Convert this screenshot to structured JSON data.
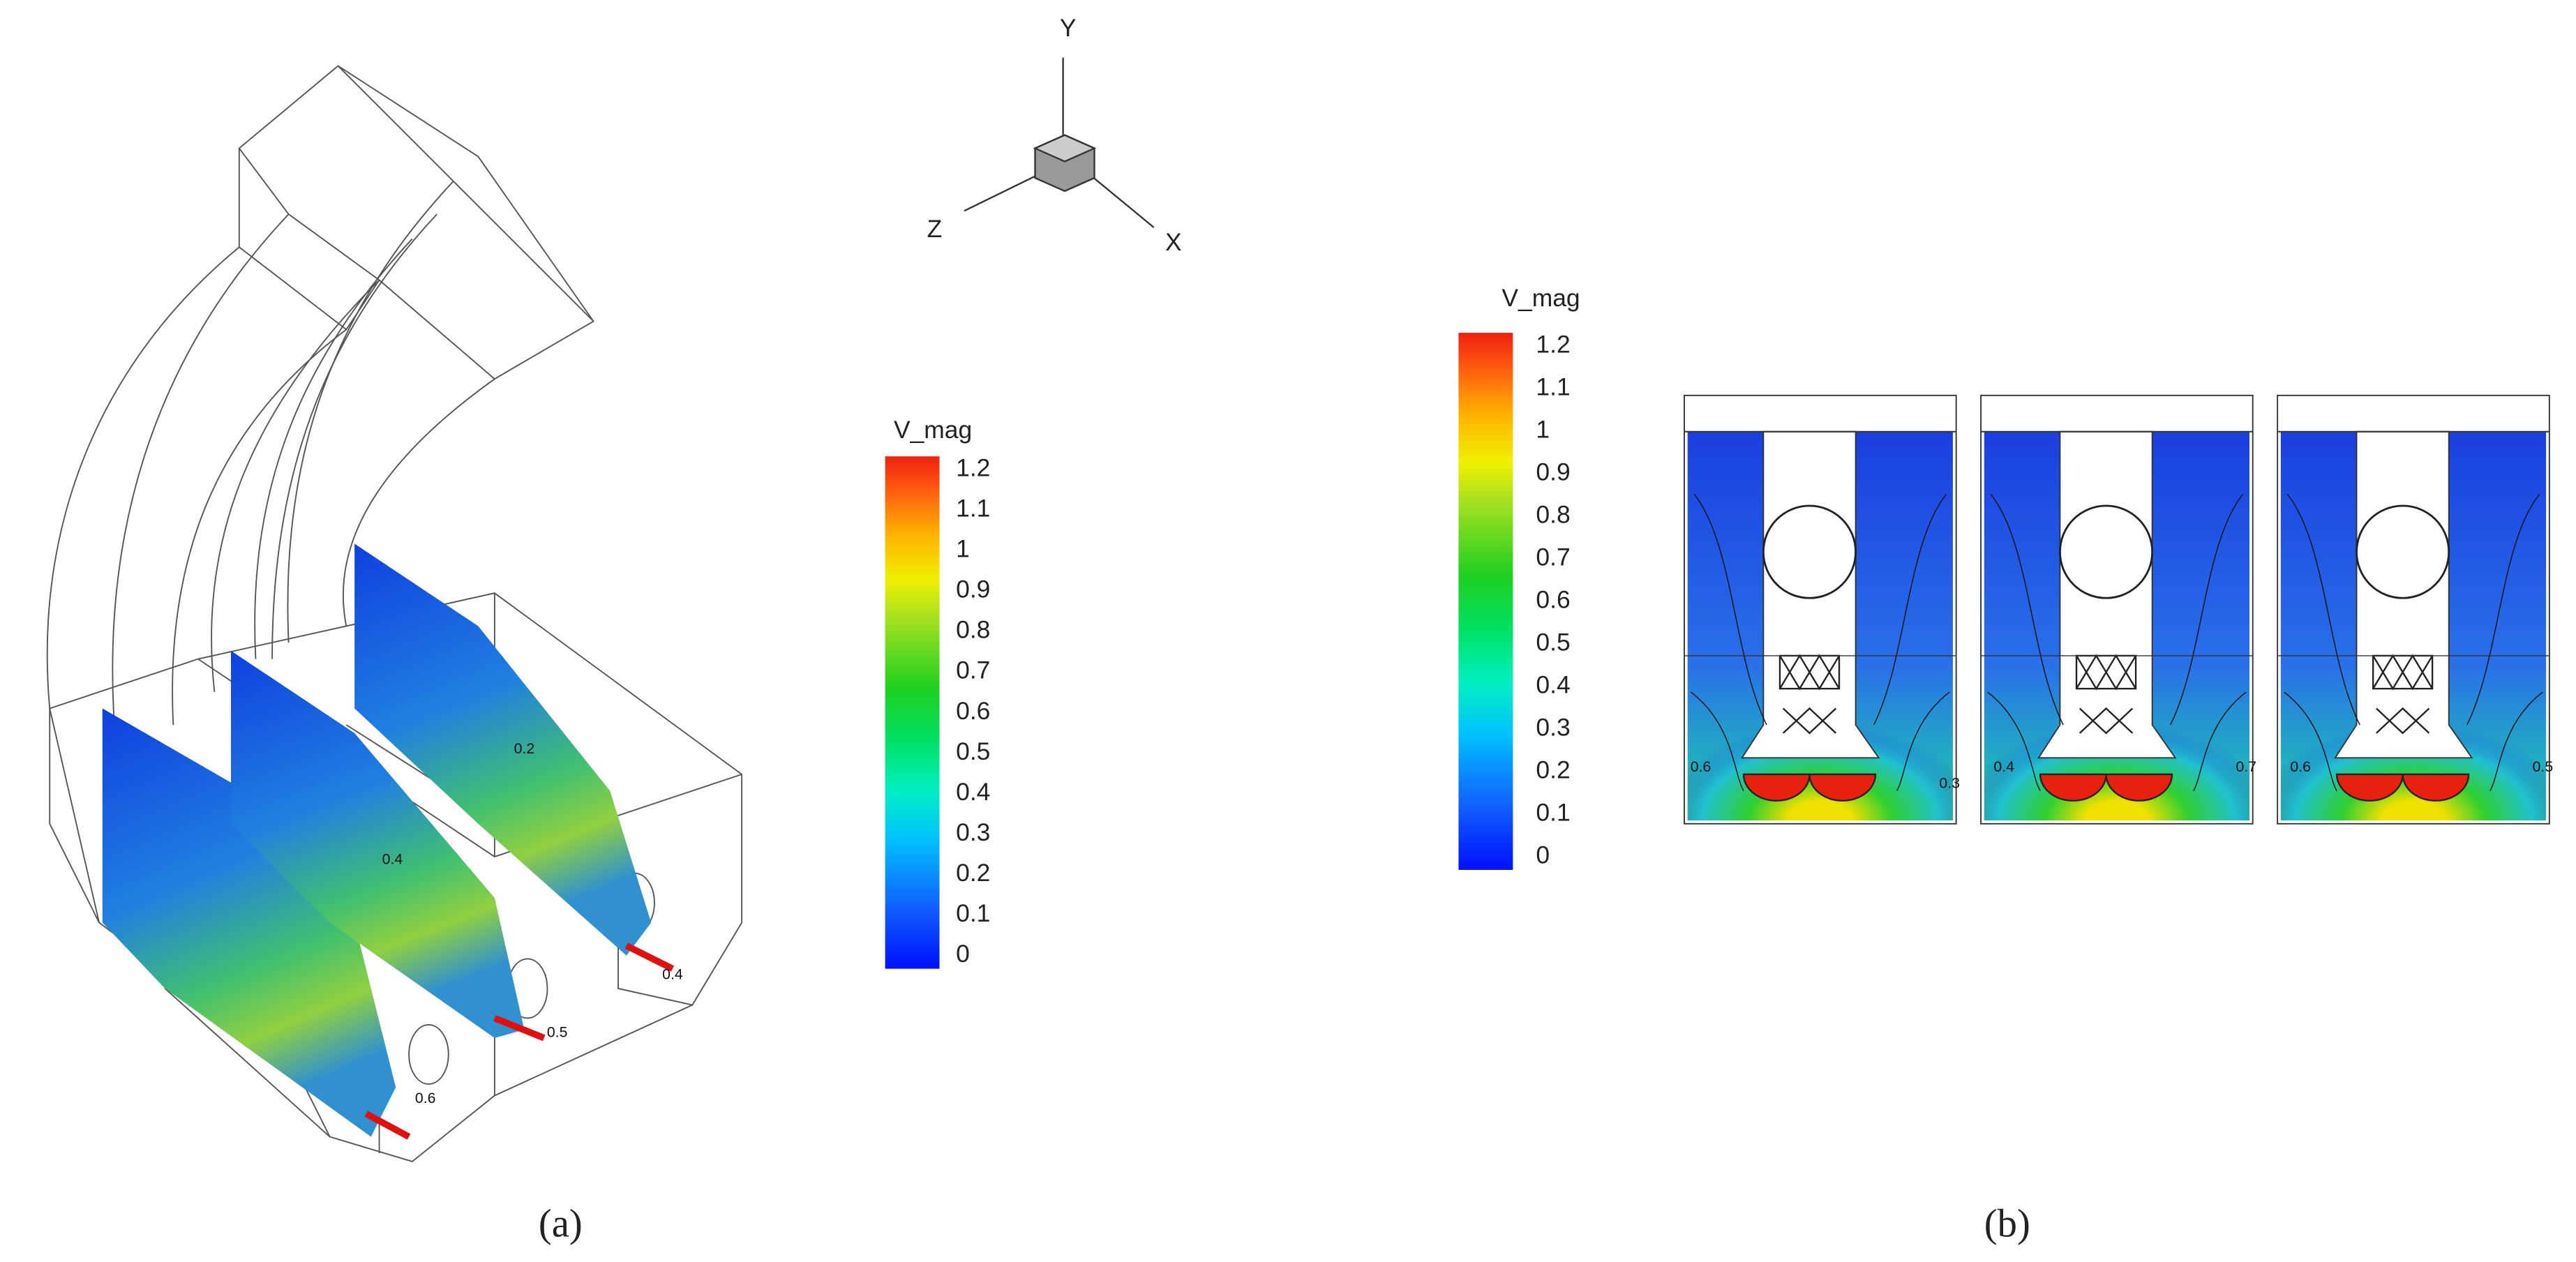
{
  "axes_triad": {
    "y": "Y",
    "z": "Z",
    "x": "X"
  },
  "panels": [
    {
      "label": "(a)",
      "colorbar": {
        "title": "V_mag",
        "ticks": [
          0,
          0.1,
          0.2,
          0.3,
          0.4,
          0.5,
          0.6,
          0.7,
          0.8,
          0.9,
          1,
          1.1,
          1.2
        ]
      },
      "contour_labels": [
        "0.2",
        "0.4",
        "0.6",
        "0.5",
        "0.4"
      ]
    },
    {
      "label": "(b)",
      "colorbar": {
        "title": "V_mag",
        "ticks": [
          0,
          0.1,
          0.2,
          0.3,
          0.4,
          0.5,
          0.6,
          0.7,
          0.8,
          0.9,
          1,
          1.1,
          1.2
        ]
      },
      "contour_labels": [
        "0.6",
        "0.3",
        "0.4",
        "0.7",
        "0.6",
        "0.5"
      ]
    }
  ]
}
